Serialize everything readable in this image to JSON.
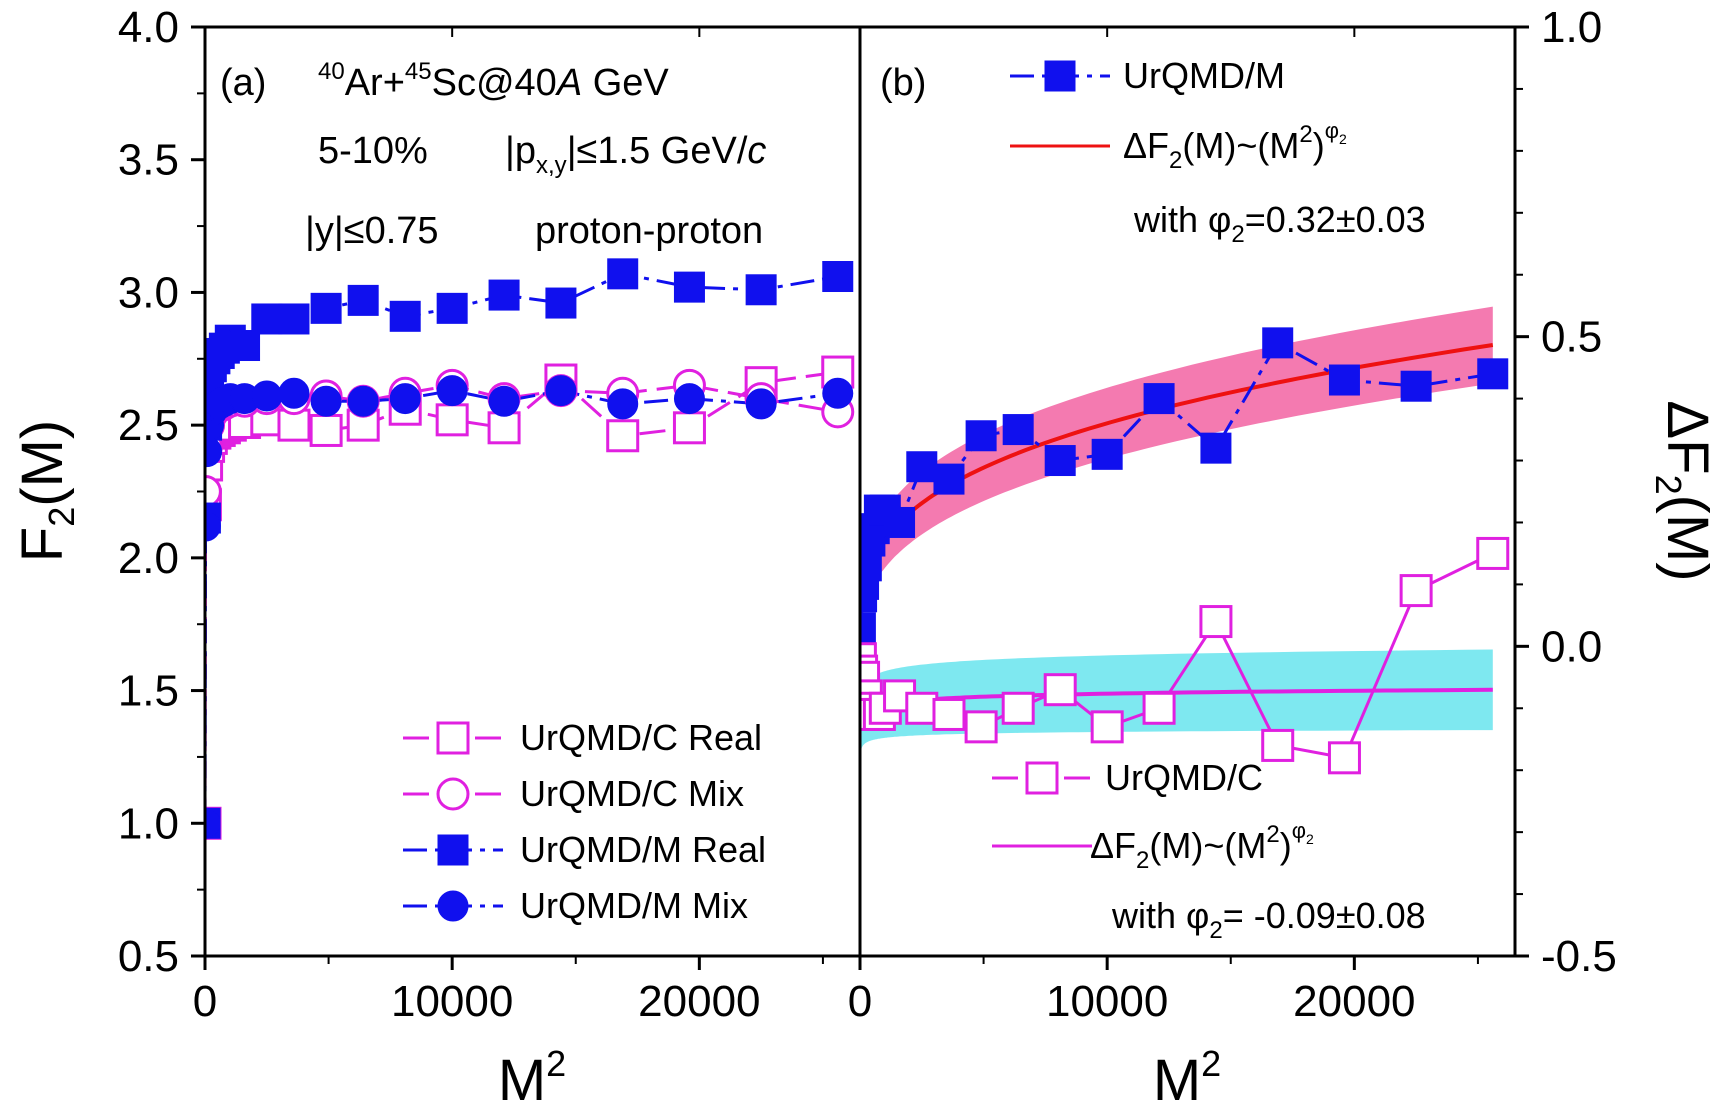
{
  "chart_data": [
    {
      "panel": "a",
      "type": "line",
      "title": "",
      "panel_label": "(a)",
      "annotations": {
        "system": {
          "a1": "40",
          "t1": "Ar+",
          "a2": "45",
          "t2": "Sc@40",
          "t3": "A",
          "t4": " GeV"
        },
        "centrality": "5-10%",
        "pxy": {
          "t1": "|p",
          "sub": "x,y",
          "t2": "|≤1.5 GeV/",
          "t3": "c"
        },
        "rapidity": "|y|≤0.75",
        "pair": "proton-proton"
      },
      "xlabel": {
        "base": "M",
        "sup": "2"
      },
      "ylabel": {
        "base": "F",
        "sub": "2",
        "rest": "(M)"
      },
      "xlim": [
        0,
        26500
      ],
      "ylim": [
        0.5,
        4.0
      ],
      "xticks": [
        0,
        10000,
        20000
      ],
      "xtick_labels": [
        "0",
        "10000",
        "20000"
      ],
      "yticks": [
        0.5,
        1.0,
        1.5,
        2.0,
        2.5,
        3.0,
        3.5,
        4.0
      ],
      "ytick_labels": [
        "0.5",
        "1.0",
        "1.5",
        "2.0",
        "2.5",
        "3.0",
        "3.5",
        "4.0"
      ],
      "legend_position": "bottom-right",
      "series": [
        {
          "name": "UrQMD/C Real",
          "color": "#e020e0",
          "marker": "square-open",
          "dash": "long-dash",
          "x": [
            1,
            16,
            64,
            144,
            256,
            400,
            576,
            784,
            1024,
            1600,
            2500,
            3600,
            4900,
            6400,
            8100,
            10000,
            12100,
            14400,
            16900,
            19600,
            22500,
            25600
          ],
          "y": [
            1.0,
            2.2,
            2.35,
            2.42,
            2.45,
            2.47,
            2.48,
            2.49,
            2.5,
            2.51,
            2.52,
            2.5,
            2.48,
            2.5,
            2.56,
            2.52,
            2.49,
            2.67,
            2.46,
            2.49,
            2.66,
            2.7
          ]
        },
        {
          "name": "UrQMD/C Mix",
          "color": "#e020e0",
          "marker": "circle-open",
          "dash": "long-dash",
          "x": [
            1,
            16,
            64,
            144,
            256,
            400,
            576,
            784,
            1024,
            1600,
            2500,
            3600,
            4900,
            6400,
            8100,
            10000,
            12100,
            14400,
            16900,
            19600,
            22500,
            25600
          ],
          "y": [
            1.0,
            2.25,
            2.42,
            2.5,
            2.54,
            2.56,
            2.57,
            2.58,
            2.59,
            2.59,
            2.6,
            2.6,
            2.61,
            2.59,
            2.62,
            2.65,
            2.6,
            2.63,
            2.62,
            2.65,
            2.6,
            2.55
          ]
        },
        {
          "name": "UrQMD/M Real",
          "color": "#1010ee",
          "marker": "square-filled",
          "dash": "dash-dot",
          "x": [
            1,
            16,
            64,
            144,
            256,
            400,
            576,
            784,
            1024,
            1600,
            2500,
            3600,
            4900,
            6400,
            8100,
            10000,
            12100,
            14400,
            16900,
            19600,
            22500,
            25600
          ],
          "y": [
            1.0,
            2.15,
            2.5,
            2.65,
            2.72,
            2.75,
            2.77,
            2.79,
            2.82,
            2.8,
            2.9,
            2.9,
            2.94,
            2.97,
            2.91,
            2.94,
            2.99,
            2.96,
            3.07,
            3.02,
            3.01,
            3.06
          ]
        },
        {
          "name": "UrQMD/M Mix",
          "color": "#1010ee",
          "marker": "circle-filled",
          "dash": "dash-dot",
          "x": [
            1,
            16,
            64,
            144,
            256,
            400,
            576,
            784,
            1024,
            1600,
            2500,
            3600,
            4900,
            6400,
            8100,
            10000,
            12100,
            14400,
            16900,
            19600,
            22500,
            25600
          ],
          "y": [
            1.0,
            2.12,
            2.4,
            2.5,
            2.55,
            2.57,
            2.58,
            2.59,
            2.6,
            2.6,
            2.61,
            2.62,
            2.59,
            2.59,
            2.6,
            2.63,
            2.59,
            2.63,
            2.58,
            2.6,
            2.58,
            2.62
          ]
        }
      ]
    },
    {
      "panel": "b",
      "type": "line",
      "title": "",
      "panel_label": "(b)",
      "xlabel": {
        "base": "M",
        "sup": "2"
      },
      "ylabel": {
        "base": "ΔF",
        "sub": "2",
        "rest": "(M)"
      },
      "xlim": [
        0,
        26500
      ],
      "ylim": [
        -0.5,
        1.0
      ],
      "xticks": [
        0,
        10000,
        20000
      ],
      "xtick_labels": [
        "0",
        "10000",
        "20000"
      ],
      "yticks": [
        -0.5,
        0.0,
        0.5,
        1.0
      ],
      "ytick_labels": [
        "-0.5",
        "0.0",
        "0.5",
        "1.0"
      ],
      "legend_position": "top-right and bottom-right",
      "legend_upper": {
        "marker_label": "UrQMD/M",
        "fit_label": {
          "t1": "ΔF",
          "sub": "2",
          "t2": "(M)~(M",
          "sup2": "2",
          "t3": ")",
          "phi": "φ",
          "phisub": "2"
        },
        "fit_note": {
          "t1": "with φ",
          "sub": "2",
          "t2": "=0.32±0.03"
        }
      },
      "legend_lower": {
        "marker_label": "UrQMD/C",
        "fit_label": {
          "t1": "ΔF",
          "sub": "2",
          "t2": "(M)~(M",
          "sup2": "2",
          "t3": ")",
          "phi": "φ",
          "phisub": "2"
        },
        "fit_note": {
          "t1": "with φ",
          "sub": "2",
          "t2": "= -0.09±0.08"
        }
      },
      "series": [
        {
          "name": "UrQMD/M",
          "color": "#1010ee",
          "marker": "square-filled",
          "dash": "dash-dot",
          "x": [
            16,
            64,
            144,
            256,
            400,
            576,
            784,
            1024,
            1600,
            2500,
            3600,
            4900,
            6400,
            8100,
            10000,
            12100,
            14400,
            16900,
            19600,
            22500,
            25600
          ],
          "y": [
            0.03,
            0.08,
            0.1,
            0.13,
            0.17,
            0.19,
            0.22,
            0.22,
            0.2,
            0.29,
            0.27,
            0.34,
            0.35,
            0.3,
            0.31,
            0.4,
            0.32,
            0.49,
            0.43,
            0.42,
            0.44
          ]
        },
        {
          "name": "UrQMD/C",
          "color": "#e020e0",
          "marker": "square-open",
          "dash": "solid",
          "x": [
            16,
            64,
            144,
            256,
            400,
            576,
            784,
            1024,
            1600,
            2500,
            3600,
            4900,
            6400,
            8100,
            10000,
            12100,
            14400,
            16900,
            19600,
            22500,
            25600
          ],
          "y": [
            -0.02,
            -0.04,
            -0.05,
            -0.08,
            -0.1,
            -0.11,
            -0.11,
            -0.1,
            -0.08,
            -0.1,
            -0.11,
            -0.13,
            -0.1,
            -0.07,
            -0.13,
            -0.1,
            0.04,
            -0.16,
            -0.18,
            0.09,
            0.15
          ]
        }
      ],
      "fits": [
        {
          "name": "UrQMD/M fit",
          "color": "#ee1111",
          "band_color": "#f47ab0",
          "A": 0.0189,
          "phi": 0.32,
          "band": [
            0.0,
            0.06
          ],
          "xrange": [
            16,
            25600
          ]
        },
        {
          "name": "UrQMD/C fit",
          "color": "#e020e0",
          "band_color": "#7ee8f0",
          "A": -0.175,
          "phi": -0.09,
          "band": [
            -0.15,
            0.065
          ],
          "xrange": [
            16,
            25600
          ]
        }
      ]
    }
  ]
}
